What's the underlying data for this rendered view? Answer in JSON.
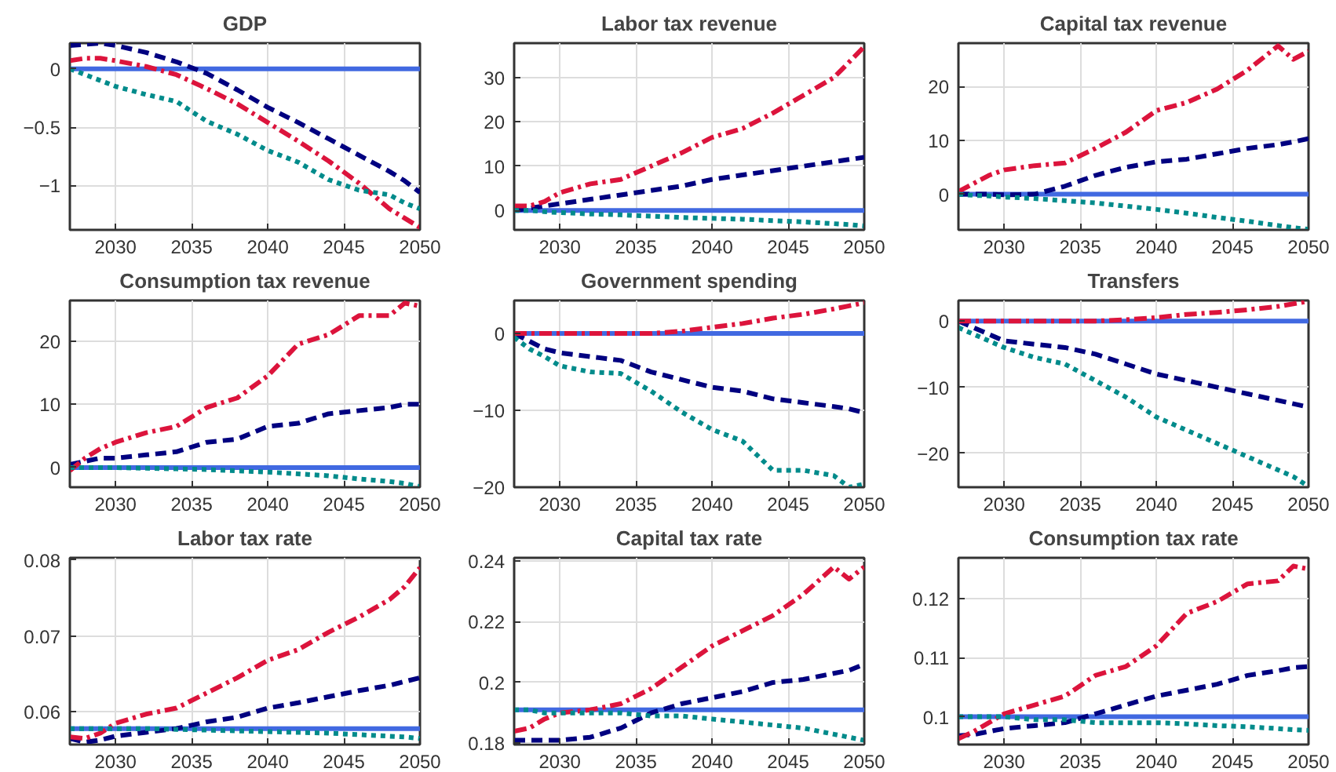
{
  "chart_data": [
    {
      "type": "line",
      "title": "GDP",
      "x": [
        2027,
        2028,
        2029,
        2030,
        2032,
        2034,
        2036,
        2038,
        2040,
        2042,
        2044,
        2046,
        2048,
        2049,
        2050
      ],
      "xlim": [
        2027,
        2050
      ],
      "xticks": [
        2030,
        2035,
        2040,
        2045,
        2050
      ],
      "ylim": [
        -1.38,
        0.22
      ],
      "yticks": [
        -1,
        -0.5,
        0
      ],
      "grid": true,
      "series": [
        {
          "color": "#4169e1",
          "line_style": "solid",
          "values": [
            0,
            0,
            0,
            0,
            0,
            0,
            0,
            0,
            0,
            0,
            0,
            0,
            0,
            0,
            0
          ]
        },
        {
          "color": "#000080",
          "line_style": "dashed",
          "values": [
            0.2,
            0.21,
            0.22,
            0.2,
            0.14,
            0.06,
            -0.04,
            -0.18,
            -0.33,
            -0.46,
            -0.6,
            -0.74,
            -0.88,
            -0.96,
            -1.06
          ]
        },
        {
          "color": "#dc143c",
          "line_style": "dashdot",
          "values": [
            0.07,
            0.09,
            0.09,
            0.07,
            0.02,
            -0.05,
            -0.17,
            -0.3,
            -0.46,
            -0.62,
            -0.79,
            -0.98,
            -1.2,
            -1.28,
            -1.36
          ]
        },
        {
          "color": "#008b8b",
          "line_style": "dotted",
          "values": [
            0,
            -0.05,
            -0.1,
            -0.15,
            -0.22,
            -0.28,
            -0.45,
            -0.56,
            -0.7,
            -0.8,
            -0.95,
            -1.04,
            -1.08,
            -1.15,
            -1.2
          ]
        }
      ]
    },
    {
      "type": "line",
      "title": "Labor tax revenue",
      "x": [
        2027,
        2028,
        2029,
        2030,
        2032,
        2034,
        2036,
        2038,
        2040,
        2042,
        2044,
        2046,
        2048,
        2049,
        2050
      ],
      "xlim": [
        2027,
        2050
      ],
      "xticks": [
        2030,
        2035,
        2040,
        2045,
        2050
      ],
      "ylim": [
        -4.4,
        37.8
      ],
      "yticks": [
        0,
        10,
        20,
        30
      ],
      "grid": true,
      "series": [
        {
          "color": "#4169e1",
          "line_style": "solid",
          "values": [
            0,
            0,
            0,
            0,
            0,
            0,
            0,
            0,
            0,
            0,
            0,
            0,
            0,
            0,
            0
          ]
        },
        {
          "color": "#000080",
          "line_style": "dashed",
          "values": [
            0,
            0.5,
            1,
            1.5,
            2.5,
            3.5,
            4.5,
            5.5,
            7,
            8,
            9,
            10,
            11,
            11.5,
            12
          ]
        },
        {
          "color": "#dc143c",
          "line_style": "dashdot",
          "values": [
            1,
            1,
            2,
            4,
            6,
            7,
            10,
            13,
            16.5,
            18.5,
            22,
            26,
            30,
            33.5,
            37
          ]
        },
        {
          "color": "#008b8b",
          "line_style": "dotted",
          "values": [
            0,
            0,
            -0.3,
            -0.5,
            -0.8,
            -1,
            -1.3,
            -1.6,
            -1.8,
            -2,
            -2.3,
            -2.6,
            -3,
            -3.2,
            -3.5
          ]
        }
      ]
    },
    {
      "type": "line",
      "title": "Capital tax revenue",
      "x": [
        2027,
        2028,
        2029,
        2030,
        2032,
        2034,
        2036,
        2038,
        2040,
        2042,
        2044,
        2046,
        2048,
        2049,
        2050
      ],
      "xlim": [
        2027,
        2050
      ],
      "xticks": [
        2030,
        2035,
        2040,
        2045,
        2050
      ],
      "ylim": [
        -6.6,
        28
      ],
      "yticks": [
        0,
        10,
        20
      ],
      "grid": true,
      "series": [
        {
          "color": "#4169e1",
          "line_style": "solid",
          "values": [
            0,
            0,
            0,
            0,
            0,
            0,
            0,
            0,
            0,
            0,
            0,
            0,
            0,
            0,
            0
          ]
        },
        {
          "color": "#000080",
          "line_style": "dashed",
          "values": [
            0,
            0,
            0,
            -0.1,
            0,
            1.5,
            3.5,
            5,
            6,
            6.5,
            7.5,
            8.5,
            9.2,
            9.7,
            10.3
          ]
        },
        {
          "color": "#dc143c",
          "line_style": "dashdot",
          "values": [
            0.5,
            2,
            3.5,
            4.5,
            5.3,
            5.8,
            8.5,
            11.5,
            15.5,
            17,
            19.5,
            23,
            27.5,
            25,
            26.5
          ]
        },
        {
          "color": "#008b8b",
          "line_style": "dotted",
          "values": [
            0,
            -0.2,
            -0.3,
            -0.5,
            -0.8,
            -1.2,
            -1.6,
            -2.2,
            -2.8,
            -3.5,
            -4.3,
            -5,
            -5.8,
            -6.2,
            -6.5
          ]
        }
      ]
    },
    {
      "type": "line",
      "title": "Consumption tax revenue",
      "x": [
        2027,
        2028,
        2029,
        2030,
        2032,
        2034,
        2036,
        2038,
        2040,
        2042,
        2044,
        2046,
        2048,
        2049,
        2050
      ],
      "xlim": [
        2027,
        2050
      ],
      "xticks": [
        2030,
        2035,
        2040,
        2045,
        2050
      ],
      "ylim": [
        -3.1,
        26.4
      ],
      "yticks": [
        0,
        10,
        20
      ],
      "grid": true,
      "series": [
        {
          "color": "#4169e1",
          "line_style": "solid",
          "values": [
            0,
            0,
            0,
            0,
            0,
            0,
            0,
            0,
            0,
            0,
            0,
            0,
            0,
            0,
            0
          ]
        },
        {
          "color": "#000080",
          "line_style": "dashed",
          "values": [
            0.5,
            1,
            1.5,
            1.5,
            2,
            2.5,
            4,
            4.5,
            6.5,
            7,
            8.5,
            9,
            9.5,
            10,
            10
          ]
        },
        {
          "color": "#dc143c",
          "line_style": "dashdot",
          "values": [
            -0.5,
            1.5,
            3,
            4,
            5.5,
            6.5,
            9.5,
            11,
            14.5,
            19.5,
            21,
            24,
            24,
            26,
            25.5
          ]
        },
        {
          "color": "#008b8b",
          "line_style": "dotted",
          "values": [
            0,
            0,
            0,
            0,
            -0.1,
            -0.2,
            -0.3,
            -0.5,
            -0.7,
            -1,
            -1.3,
            -1.8,
            -2.2,
            -2.5,
            -3
          ]
        }
      ]
    },
    {
      "type": "line",
      "title": "Government spending",
      "x": [
        2027,
        2028,
        2029,
        2030,
        2032,
        2034,
        2036,
        2038,
        2040,
        2042,
        2044,
        2046,
        2048,
        2049,
        2050
      ],
      "xlim": [
        2027,
        2050
      ],
      "xticks": [
        2030,
        2035,
        2040,
        2045,
        2050
      ],
      "ylim": [
        -20,
        4.3
      ],
      "yticks": [
        -20,
        -10,
        0
      ],
      "grid": true,
      "series": [
        {
          "color": "#4169e1",
          "line_style": "solid",
          "values": [
            0,
            0,
            0,
            0,
            0,
            0,
            0,
            0,
            0,
            0,
            0,
            0,
            0,
            0,
            0
          ]
        },
        {
          "color": "#000080",
          "line_style": "dashed",
          "values": [
            0,
            -1,
            -2,
            -2.5,
            -3,
            -3.5,
            -5,
            -6,
            -7,
            -7.5,
            -8.5,
            -9,
            -9.5,
            -9.8,
            -10.3
          ]
        },
        {
          "color": "#dc143c",
          "line_style": "dashdot",
          "values": [
            0,
            0,
            0,
            0,
            0,
            0,
            0,
            0.3,
            0.8,
            1.3,
            2,
            2.5,
            3.2,
            3.6,
            4
          ]
        },
        {
          "color": "#008b8b",
          "line_style": "dotted",
          "values": [
            -0.5,
            -2,
            -3,
            -4.2,
            -5,
            -5.2,
            -7.5,
            -10.2,
            -12.5,
            -14,
            -17.8,
            -17.8,
            -18.5,
            -20,
            -19.6
          ]
        }
      ]
    },
    {
      "type": "line",
      "title": "Transfers",
      "x": [
        2027,
        2028,
        2029,
        2030,
        2032,
        2034,
        2036,
        2038,
        2040,
        2042,
        2044,
        2046,
        2048,
        2049,
        2050
      ],
      "xlim": [
        2027,
        2050
      ],
      "xticks": [
        2030,
        2035,
        2040,
        2045,
        2050
      ],
      "ylim": [
        -25.1,
        3.1
      ],
      "yticks": [
        -20,
        -10,
        0
      ],
      "grid": true,
      "series": [
        {
          "color": "#4169e1",
          "line_style": "solid",
          "values": [
            0,
            0,
            0,
            0,
            0,
            0,
            0,
            0,
            0,
            0,
            0,
            0,
            0,
            0,
            0
          ]
        },
        {
          "color": "#000080",
          "line_style": "dashed",
          "values": [
            0,
            -1,
            -2,
            -3,
            -3.5,
            -4,
            -5,
            -6.5,
            -8,
            -9,
            -10,
            -11,
            -12,
            -12.5,
            -13
          ]
        },
        {
          "color": "#dc143c",
          "line_style": "dashdot",
          "values": [
            0,
            0,
            0,
            0,
            0,
            0,
            0,
            0.2,
            0.5,
            1,
            1.3,
            1.7,
            2.2,
            2.6,
            3
          ]
        },
        {
          "color": "#008b8b",
          "line_style": "dotted",
          "values": [
            -1,
            -2,
            -3,
            -4,
            -5.5,
            -6.5,
            -9,
            -11.5,
            -14.5,
            -16.5,
            -18.5,
            -20.5,
            -22.5,
            -23.5,
            -25
          ]
        }
      ]
    },
    {
      "type": "line",
      "title": "Labor tax rate",
      "x": [
        2027,
        2028,
        2029,
        2030,
        2032,
        2034,
        2036,
        2038,
        2040,
        2042,
        2044,
        2046,
        2048,
        2049,
        2050
      ],
      "xlim": [
        2027,
        2050
      ],
      "xticks": [
        2030,
        2035,
        2040,
        2045,
        2050
      ],
      "ylim": [
        0.0557,
        0.0803
      ],
      "yticks": [
        0.06,
        0.07,
        0.08
      ],
      "grid": true,
      "series": [
        {
          "color": "#4169e1",
          "line_style": "solid",
          "values": [
            0.0578,
            0.0578,
            0.0578,
            0.0578,
            0.0578,
            0.0578,
            0.0578,
            0.0578,
            0.0578,
            0.0578,
            0.0578,
            0.0578,
            0.0578,
            0.0578,
            0.0578
          ]
        },
        {
          "color": "#000080",
          "line_style": "dashed",
          "values": [
            0.0565,
            0.056,
            0.0563,
            0.0568,
            0.0573,
            0.0578,
            0.0587,
            0.0593,
            0.0605,
            0.0612,
            0.062,
            0.0628,
            0.0635,
            0.064,
            0.0645
          ]
        },
        {
          "color": "#dc143c",
          "line_style": "dashdot",
          "values": [
            0.0567,
            0.0565,
            0.0572,
            0.0585,
            0.0597,
            0.0605,
            0.0625,
            0.0645,
            0.0668,
            0.0682,
            0.0705,
            0.0725,
            0.0748,
            0.0765,
            0.079
          ]
        },
        {
          "color": "#008b8b",
          "line_style": "dotted",
          "values": [
            0.0578,
            0.0578,
            0.0578,
            0.0578,
            0.0578,
            0.0577,
            0.0576,
            0.0575,
            0.0574,
            0.0573,
            0.0572,
            0.057,
            0.0568,
            0.0567,
            0.0565
          ]
        }
      ]
    },
    {
      "type": "line",
      "title": "Capital tax rate",
      "x": [
        2027,
        2028,
        2029,
        2030,
        2032,
        2034,
        2036,
        2038,
        2040,
        2042,
        2044,
        2046,
        2048,
        2049,
        2050
      ],
      "xlim": [
        2027,
        2050
      ],
      "xticks": [
        2030,
        2035,
        2040,
        2045,
        2050
      ],
      "ylim": [
        0.1796,
        0.241
      ],
      "yticks": [
        0.18,
        0.2,
        0.22,
        0.24
      ],
      "grid": true,
      "series": [
        {
          "color": "#4169e1",
          "line_style": "solid",
          "values": [
            0.191,
            0.191,
            0.191,
            0.191,
            0.191,
            0.191,
            0.191,
            0.191,
            0.191,
            0.191,
            0.191,
            0.191,
            0.191,
            0.191,
            0.191
          ]
        },
        {
          "color": "#000080",
          "line_style": "dashed",
          "values": [
            0.181,
            0.181,
            0.181,
            0.181,
            0.182,
            0.185,
            0.19,
            0.193,
            0.195,
            0.197,
            0.2,
            0.201,
            0.203,
            0.204,
            0.206
          ]
        },
        {
          "color": "#dc143c",
          "line_style": "dashdot",
          "values": [
            0.184,
            0.185,
            0.188,
            0.19,
            0.191,
            0.193,
            0.198,
            0.205,
            0.212,
            0.217,
            0.222,
            0.229,
            0.238,
            0.234,
            0.238
          ]
        },
        {
          "color": "#008b8b",
          "line_style": "dotted",
          "values": [
            0.191,
            0.191,
            0.19,
            0.19,
            0.19,
            0.19,
            0.189,
            0.189,
            0.188,
            0.187,
            0.186,
            0.185,
            0.183,
            0.182,
            0.181
          ]
        }
      ]
    },
    {
      "type": "line",
      "title": "Consumption tax rate",
      "x": [
        2027,
        2028,
        2029,
        2030,
        2032,
        2034,
        2036,
        2038,
        2040,
        2042,
        2044,
        2046,
        2048,
        2049,
        2050
      ],
      "xlim": [
        2027,
        2050
      ],
      "xticks": [
        2030,
        2035,
        2040,
        2045,
        2050
      ],
      "ylim": [
        0.0953,
        0.1269
      ],
      "yticks": [
        0.1,
        0.11,
        0.12
      ],
      "grid": true,
      "series": [
        {
          "color": "#4169e1",
          "line_style": "solid",
          "values": [
            0.1,
            0.1,
            0.1,
            0.1,
            0.1,
            0.1,
            0.1,
            0.1,
            0.1,
            0.1,
            0.1,
            0.1,
            0.1,
            0.1,
            0.1
          ]
        },
        {
          "color": "#000080",
          "line_style": "dashed",
          "values": [
            0.0968,
            0.097,
            0.0975,
            0.098,
            0.0985,
            0.099,
            0.1005,
            0.102,
            0.1035,
            0.1045,
            0.1055,
            0.107,
            0.1078,
            0.1083,
            0.1085
          ]
        },
        {
          "color": "#dc143c",
          "line_style": "dashdot",
          "values": [
            0.0963,
            0.0975,
            0.099,
            0.1005,
            0.102,
            0.1035,
            0.107,
            0.1085,
            0.112,
            0.1175,
            0.1195,
            0.1225,
            0.123,
            0.1255,
            0.125
          ]
        },
        {
          "color": "#008b8b",
          "line_style": "dotted",
          "values": [
            0.1,
            0.1,
            0.1,
            0.1,
            0.0995,
            0.0995,
            0.099,
            0.099,
            0.099,
            0.0988,
            0.0985,
            0.0983,
            0.098,
            0.0978,
            0.0977
          ]
        }
      ]
    }
  ]
}
